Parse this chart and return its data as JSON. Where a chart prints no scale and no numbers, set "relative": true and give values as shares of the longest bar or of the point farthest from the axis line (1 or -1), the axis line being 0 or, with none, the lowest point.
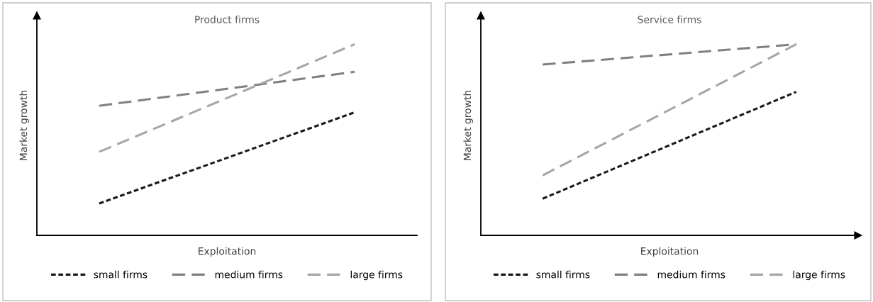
{
  "chart_data": [
    {
      "type": "line",
      "title": "Product firms",
      "xlabel": "Exploitation",
      "ylabel": "Market growth",
      "relative": true,
      "categories": [
        null,
        null
      ],
      "tick_labels": false,
      "grid": false,
      "legend": "bottom",
      "marker": "none",
      "series": [
        {
          "name": "small firms",
          "color": "#1a1a1a",
          "line_style": "dotted",
          "values": [
            0.167,
            0.644
          ]
        },
        {
          "name": "medium firms",
          "color": "#808080",
          "line_style": "dashed",
          "values": [
            0.678,
            0.856
          ]
        },
        {
          "name": "large firms",
          "color": "#a6a6a6",
          "line_style": "dashed",
          "values": [
            0.437,
            1
          ]
        }
      ]
    },
    {
      "type": "line",
      "title": "Service firms",
      "xlabel": "Exploitation",
      "ylabel": "Market growth",
      "relative": true,
      "categories": [
        null,
        null
      ],
      "tick_labels": false,
      "grid": false,
      "legend": "bottom",
      "marker": "none",
      "series": [
        {
          "name": "small firms",
          "color": "#1a1a1a",
          "line_style": "dotted",
          "values": [
            0.192,
            0.751
          ]
        },
        {
          "name": "medium firms",
          "color": "#808080",
          "line_style": "dashed",
          "values": [
            0.894,
            1
          ]
        },
        {
          "name": "large firms",
          "color": "#a6a6a6",
          "line_style": "dashed",
          "values": [
            0.314,
            1
          ]
        }
      ]
    }
  ]
}
